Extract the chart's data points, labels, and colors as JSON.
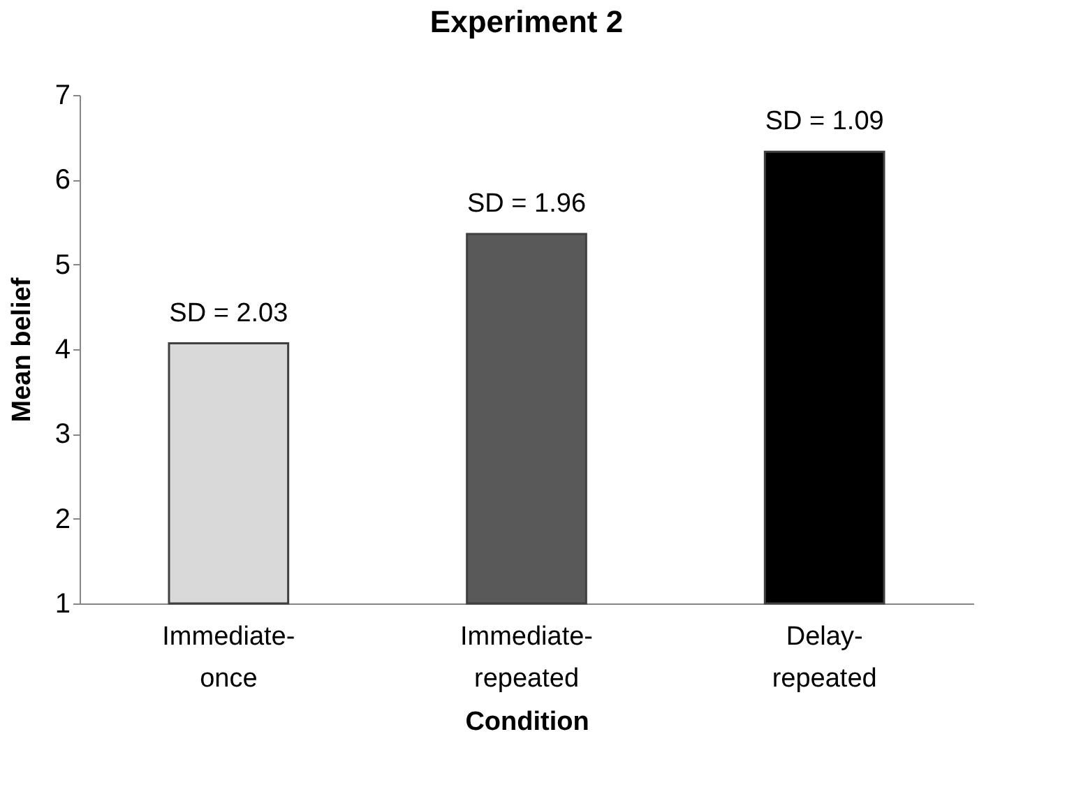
{
  "chart_data": {
    "type": "bar",
    "title": "Experiment 2",
    "xlabel": "Condition",
    "ylabel": "Mean belief",
    "categories": [
      "Immediate-once",
      "Immediate-repeated",
      "Delay-repeated"
    ],
    "values": [
      4.07,
      5.36,
      6.33
    ],
    "colors": [
      "#d9d9d9",
      "#595959",
      "#000000"
    ],
    "annotations": [
      {
        "text": "SD = 2.03",
        "x": "Immediate-once",
        "y": 4.07
      },
      {
        "text": "SD = 1.96",
        "x": "Immediate-repeated",
        "y": 5.36
      },
      {
        "text": "SD = 1.09",
        "x": "Delay-repeated",
        "y": 6.33
      }
    ],
    "ylim": [
      1,
      7
    ],
    "yticks": [
      1,
      2,
      3,
      4,
      5,
      6,
      7
    ],
    "grid": false
  }
}
